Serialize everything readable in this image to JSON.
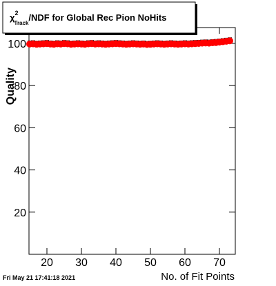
{
  "chart_data": {
    "type": "scatter",
    "title": {
      "symbol": "χ",
      "sup": "2",
      "sub": "Track",
      "text": "/NDF for Global Rec Pion NoHits"
    },
    "x_label": "No. of Fit Points",
    "y_label": "Quality",
    "timestamp": "Fri May 21 17:41:18 2021",
    "color": "#ff0000",
    "x": [
      15,
      16,
      17,
      18,
      19,
      20,
      21,
      22,
      23,
      24,
      25,
      26,
      27,
      28,
      29,
      30,
      31,
      32,
      33,
      34,
      35,
      36,
      37,
      38,
      39,
      40,
      41,
      42,
      43,
      44,
      45,
      46,
      47,
      48,
      49,
      50,
      51,
      52,
      53,
      54,
      55,
      56,
      57,
      58,
      59,
      60,
      61,
      62,
      63,
      64,
      65,
      66,
      67,
      68,
      69,
      70,
      71,
      72,
      73
    ],
    "values": [
      99.7,
      99.8,
      99.6,
      99.7,
      99.8,
      99.9,
      99.7,
      99.6,
      99.8,
      99.7,
      99.9,
      99.8,
      99.6,
      99.7,
      99.8,
      99.7,
      99.6,
      99.8,
      99.9,
      99.7,
      99.8,
      99.7,
      99.6,
      99.7,
      99.8,
      99.9,
      99.8,
      99.7,
      99.6,
      99.7,
      99.8,
      99.7,
      99.6,
      99.7,
      99.5,
      99.6,
      99.7,
      99.8,
      99.7,
      99.6,
      99.7,
      99.8,
      99.7,
      99.6,
      99.7,
      99.8,
      99.7,
      99.8,
      99.9,
      100.0,
      100.1,
      100.2,
      100.1,
      100.3,
      100.4,
      100.6,
      100.8,
      101.0,
      101.2
    ],
    "xlim": [
      14.8,
      74.6
    ],
    "ylim": [
      0,
      107.5
    ],
    "xticks": [
      20,
      30,
      40,
      50,
      60,
      70
    ],
    "yticks": [
      20,
      40,
      60,
      80,
      100
    ]
  }
}
